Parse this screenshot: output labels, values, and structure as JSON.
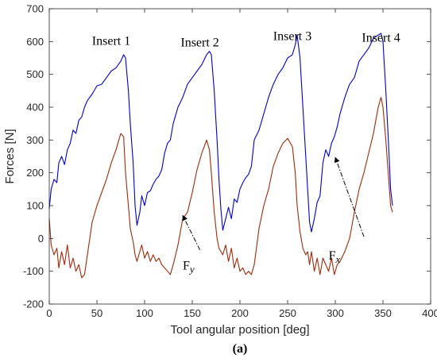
{
  "chart_data": {
    "type": "line",
    "xlabel": "Tool angular position [deg]",
    "ylabel": "Forces [N]",
    "xlim": [
      0,
      400
    ],
    "ylim": [
      -200,
      700
    ],
    "xticks": [
      "0",
      "50",
      "100",
      "150",
      "200",
      "250",
      "300",
      "350",
      "400"
    ],
    "yticks": [
      "-200",
      "-100",
      "0",
      "100",
      "200",
      "300",
      "400",
      "500",
      "600",
      "700"
    ],
    "grid": false,
    "panel_label": "(a)",
    "colors": {
      "fx": "#0000cc",
      "fy": "#a02a0a",
      "axis": "#262626"
    },
    "series": [
      {
        "key": "fx",
        "x": [
          0,
          2,
          5,
          8,
          10,
          13,
          16,
          19,
          22,
          25,
          28,
          31,
          34,
          37,
          40,
          45,
          50,
          55,
          60,
          65,
          70,
          75,
          78,
          80,
          83,
          85,
          88,
          90,
          92,
          95,
          97,
          100,
          103,
          106,
          109,
          112,
          115,
          118,
          121,
          124,
          127,
          130,
          135,
          140,
          145,
          150,
          155,
          160,
          165,
          168,
          170,
          173,
          176,
          178,
          180,
          182,
          185,
          188,
          191,
          194,
          197,
          200,
          203,
          206,
          209,
          212,
          215,
          220,
          225,
          230,
          235,
          240,
          245,
          250,
          255,
          258,
          260,
          263,
          266,
          269,
          271,
          273,
          275,
          278,
          281,
          284,
          287,
          290,
          293,
          296,
          299,
          302,
          305,
          310,
          315,
          320,
          325,
          330,
          335,
          340,
          345,
          348,
          350,
          353,
          356,
          358,
          360
        ],
        "y": [
          90,
          150,
          180,
          170,
          230,
          250,
          225,
          270,
          290,
          330,
          320,
          360,
          370,
          400,
          420,
          440,
          465,
          470,
          490,
          510,
          520,
          540,
          560,
          550,
          450,
          350,
          230,
          100,
          40,
          80,
          130,
          100,
          140,
          145,
          165,
          180,
          190,
          210,
          260,
          290,
          300,
          350,
          400,
          430,
          470,
          490,
          510,
          530,
          560,
          570,
          560,
          450,
          300,
          180,
          90,
          25,
          60,
          95,
          60,
          120,
          110,
          150,
          170,
          185,
          195,
          220,
          300,
          330,
          380,
          430,
          470,
          500,
          520,
          550,
          560,
          590,
          620,
          550,
          400,
          250,
          150,
          50,
          20,
          60,
          110,
          130,
          230,
          270,
          250,
          290,
          310,
          340,
          380,
          430,
          470,
          490,
          540,
          560,
          580,
          610,
          620,
          625,
          600,
          450,
          280,
          150,
          100
        ]
      },
      {
        "key": "fy",
        "x": [
          0,
          2,
          5,
          8,
          10,
          13,
          16,
          19,
          22,
          25,
          28,
          31,
          34,
          37,
          40,
          45,
          50,
          55,
          60,
          65,
          70,
          75,
          78,
          80,
          83,
          85,
          88,
          90,
          92,
          95,
          97,
          100,
          103,
          106,
          109,
          112,
          115,
          118,
          121,
          124,
          127,
          130,
          135,
          140,
          145,
          150,
          155,
          160,
          165,
          168,
          170,
          173,
          176,
          178,
          180,
          182,
          185,
          188,
          191,
          194,
          197,
          200,
          203,
          206,
          209,
          212,
          215,
          220,
          225,
          230,
          235,
          240,
          245,
          250,
          255,
          258,
          260,
          263,
          266,
          269,
          271,
          273,
          275,
          278,
          281,
          284,
          287,
          290,
          293,
          296,
          299,
          302,
          305,
          310,
          315,
          320,
          325,
          330,
          335,
          340,
          345,
          348,
          350,
          353,
          356,
          358,
          360
        ],
        "y": [
          60,
          -20,
          -50,
          -30,
          -90,
          -40,
          -80,
          -20,
          -90,
          -60,
          -100,
          -80,
          -120,
          -110,
          -50,
          50,
          100,
          140,
          180,
          230,
          270,
          320,
          310,
          200,
          100,
          30,
          -10,
          -50,
          -70,
          -40,
          -20,
          -60,
          -40,
          -70,
          -50,
          -70,
          -60,
          -80,
          -90,
          -100,
          -110,
          -80,
          -20,
          60,
          80,
          140,
          210,
          260,
          300,
          270,
          200,
          80,
          0,
          -30,
          -40,
          -50,
          -20,
          -70,
          -30,
          -90,
          -60,
          -100,
          -90,
          -110,
          -100,
          -110,
          -80,
          30,
          100,
          150,
          220,
          260,
          290,
          305,
          280,
          200,
          100,
          20,
          -30,
          -50,
          -40,
          -80,
          -40,
          -100,
          -60,
          -110,
          -60,
          -80,
          -100,
          -60,
          -110,
          -80,
          -70,
          -40,
          0,
          80,
          150,
          200,
          260,
          320,
          400,
          430,
          400,
          300,
          180,
          100,
          80
        ]
      }
    ],
    "annotations": {
      "inserts": [
        {
          "label": "Insert 1",
          "x": 65,
          "y": 590
        },
        {
          "label": "Insert 2",
          "x": 158,
          "y": 585
        },
        {
          "label": "Insert 3",
          "x": 255,
          "y": 605
        },
        {
          "label": "Insert 4",
          "x": 348,
          "y": 600
        }
      ],
      "fy_label": {
        "main": "F",
        "sub": "y",
        "x": 140,
        "y": -95
      },
      "fx_label": {
        "main": "F",
        "sub": "x",
        "x": 293,
        "y": -65
      },
      "fy_arrow": {
        "from": [
          158,
          -35
        ],
        "to": [
          140,
          70
        ]
      },
      "fx_arrow": {
        "from": [
          330,
          5
        ],
        "to": [
          300,
          247
        ]
      }
    }
  }
}
